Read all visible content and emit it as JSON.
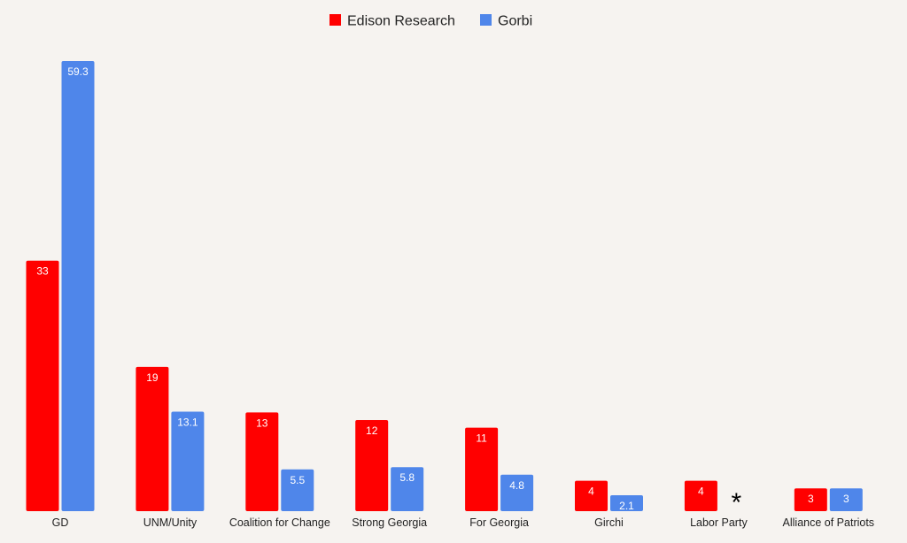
{
  "chart_data": {
    "type": "bar",
    "categories": [
      "GD",
      "UNM/Unity",
      "Coalition for Change",
      "Strong Georgia",
      "For Georgia",
      "Girchi",
      "Labor Party",
      "Alliance of Patriots"
    ],
    "series": [
      {
        "name": "Edison Research",
        "color": "#ff0000",
        "values": [
          33,
          19,
          13,
          12,
          11,
          4,
          4,
          3
        ]
      },
      {
        "name": "Gorbi",
        "color": "#4f86ea",
        "values": [
          59.3,
          13.1,
          5.5,
          5.8,
          4.8,
          2.1,
          null,
          3
        ]
      }
    ],
    "value_labels": [
      [
        "33",
        "19",
        "13",
        "12",
        "11",
        "4",
        "4",
        "3"
      ],
      [
        "59.3",
        "13.1",
        "5.5",
        "5.8",
        "4.8",
        "2.1",
        "",
        "3"
      ]
    ],
    "missing_marker": {
      "category_index": 6,
      "series_index": 1,
      "text": "*"
    },
    "ylim": [
      0,
      59.3
    ],
    "grid": false,
    "axis_ticks_visible": false,
    "legend_position": "top-center"
  }
}
